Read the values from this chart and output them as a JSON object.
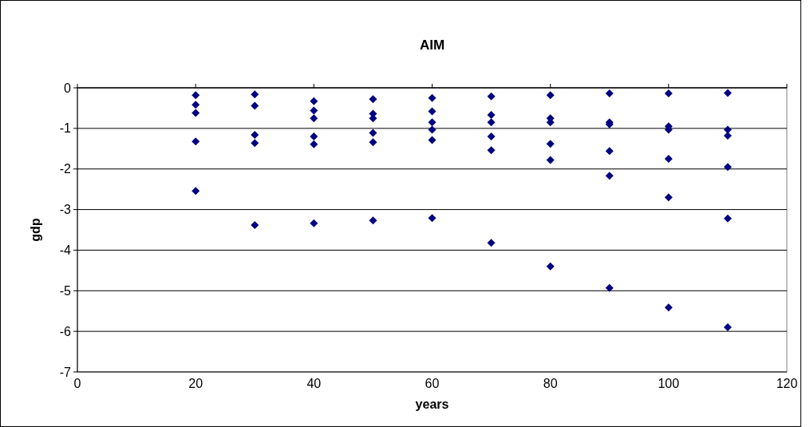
{
  "chart_data": {
    "type": "scatter",
    "title": "AIM",
    "xlabel": "years",
    "ylabel": "gdp",
    "x": [
      20,
      20,
      20,
      20,
      20,
      30,
      30,
      30,
      30,
      30,
      40,
      40,
      40,
      40,
      40,
      40,
      50,
      50,
      50,
      50,
      50,
      50,
      60,
      60,
      60,
      60,
      60,
      60,
      70,
      70,
      70,
      70,
      70,
      70,
      80,
      80,
      80,
      80,
      80,
      80,
      90,
      90,
      90,
      90,
      90,
      90,
      100,
      100,
      100,
      100,
      100,
      100,
      110,
      110,
      110,
      110,
      110,
      110
    ],
    "series": [
      {
        "color": "#000080",
        "values": [
          -0.18,
          -0.42,
          -0.62,
          -1.32,
          -2.54,
          -0.16,
          -0.44,
          -1.16,
          -1.36,
          -3.38,
          -0.33,
          -0.56,
          -0.75,
          -1.2,
          -1.39,
          -3.34,
          -0.28,
          -0.64,
          -0.75,
          -1.11,
          -1.34,
          -3.27,
          -0.25,
          -0.58,
          -0.85,
          -1.03,
          -1.29,
          -3.21,
          -0.21,
          -0.67,
          -0.85,
          -1.2,
          -1.54,
          -3.82,
          -0.18,
          -0.75,
          -0.85,
          -1.38,
          -1.78,
          -4.4,
          -0.14,
          -0.85,
          -0.9,
          -1.56,
          -2.17,
          -4.93,
          -0.14,
          -0.95,
          -1.03,
          -1.75,
          -2.7,
          -5.41,
          -0.13,
          -1.03,
          -1.18,
          -1.95,
          -3.22,
          -5.9
        ]
      }
    ],
    "xlim": [
      0,
      120
    ],
    "xticks": [
      0,
      20,
      40,
      60,
      80,
      100,
      120
    ],
    "ylim": [
      -7,
      0
    ],
    "yticks": [
      -7,
      -6,
      -5,
      -4,
      -3,
      -2,
      -1,
      0
    ],
    "grid": "y",
    "marker": "diamond"
  }
}
